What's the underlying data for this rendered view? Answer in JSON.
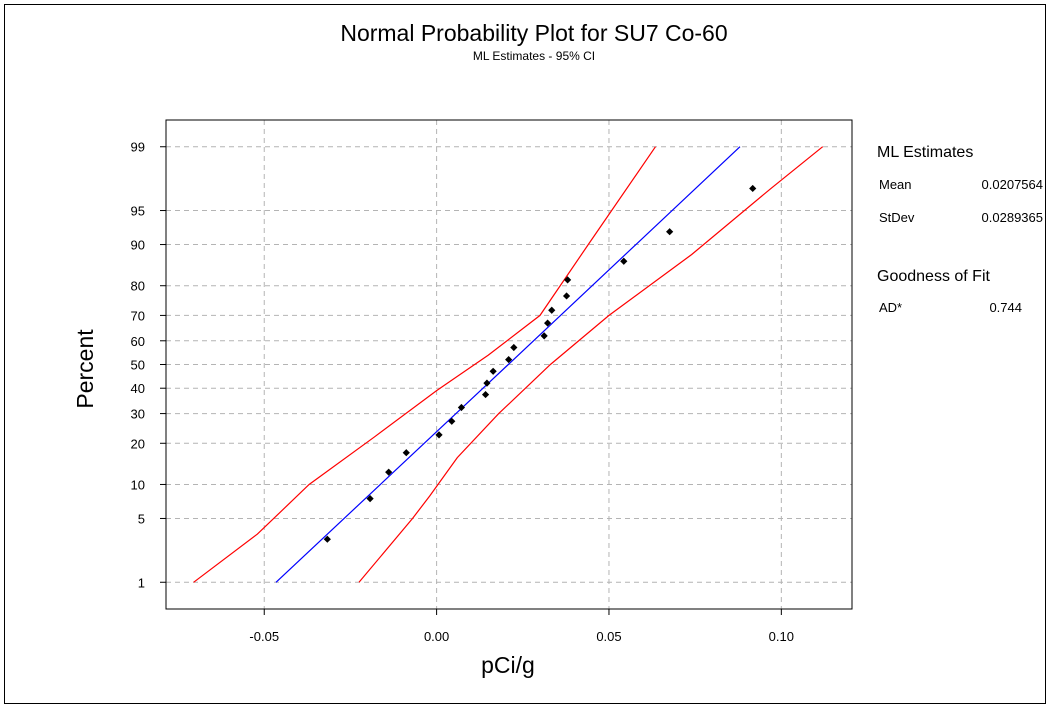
{
  "chart_data": {
    "type": "scatter",
    "title": "Normal Probability Plot for SU7 Co-60",
    "subtitle": "ML Estimates - 95% CI",
    "xlabel": "pCi/g",
    "ylabel": "Percent",
    "xlim": [
      -0.0785,
      0.1205
    ],
    "x_ticks": [
      -0.05,
      0.0,
      0.05,
      0.1
    ],
    "x_tick_labels": [
      "-0.05",
      "0.00",
      "0.05",
      "0.10"
    ],
    "y_scale": "normal-probability",
    "ylim": [
      0.45,
      99.55
    ],
    "y_ticks": [
      1,
      5,
      10,
      20,
      30,
      40,
      50,
      60,
      70,
      80,
      90,
      95,
      99
    ],
    "y_tick_labels": [
      "1",
      "5",
      "10",
      "20",
      "30",
      "40",
      "50",
      "60",
      "70",
      "80",
      "90",
      "95",
      "99"
    ],
    "grid": true,
    "grid_style": "dashed",
    "series": [
      {
        "kind": "points",
        "color": "#000000",
        "marker": "diamond",
        "points": [
          {
            "x": -0.0317,
            "y": 3.1
          },
          {
            "x": -0.0193,
            "y": 7.6
          },
          {
            "x": -0.0139,
            "y": 12.5
          },
          {
            "x": -0.0088,
            "y": 17.3
          },
          {
            "x": 0.0007,
            "y": 22.6
          },
          {
            "x": 0.0044,
            "y": 27.2
          },
          {
            "x": 0.0072,
            "y": 32.3
          },
          {
            "x": 0.0142,
            "y": 37.4
          },
          {
            "x": 0.0146,
            "y": 42.1
          },
          {
            "x": 0.0164,
            "y": 47.1
          },
          {
            "x": 0.0209,
            "y": 52.1
          },
          {
            "x": 0.0224,
            "y": 57.2
          },
          {
            "x": 0.0312,
            "y": 62.0
          },
          {
            "x": 0.0322,
            "y": 67.1
          },
          {
            "x": 0.0334,
            "y": 71.9
          },
          {
            "x": 0.0377,
            "y": 76.8
          },
          {
            "x": 0.038,
            "y": 81.7
          },
          {
            "x": 0.0543,
            "y": 86.5
          },
          {
            "x": 0.0676,
            "y": 92.2
          },
          {
            "x": 0.0917,
            "y": 97.0
          }
        ]
      },
      {
        "kind": "line",
        "color": "#0000ff",
        "points": [
          {
            "x": -0.0466,
            "y": 1
          },
          {
            "x": 0.0208,
            "y": 50
          },
          {
            "x": 0.088,
            "y": 99
          }
        ]
      },
      {
        "kind": "line",
        "color": "#ff0000",
        "points": [
          {
            "x": -0.0705,
            "y": 1
          },
          {
            "x": -0.052,
            "y": 3.5
          },
          {
            "x": -0.037,
            "y": 10
          },
          {
            "x": -0.018,
            "y": 22
          },
          {
            "x": 0.0,
            "y": 39
          },
          {
            "x": 0.015,
            "y": 54
          },
          {
            "x": 0.03,
            "y": 70
          },
          {
            "x": 0.044,
            "y": 90
          },
          {
            "x": 0.0635,
            "y": 99
          }
        ]
      },
      {
        "kind": "line",
        "color": "#ff0000",
        "points": [
          {
            "x": -0.0225,
            "y": 1
          },
          {
            "x": -0.007,
            "y": 5
          },
          {
            "x": -0.002,
            "y": 8
          },
          {
            "x": 0.006,
            "y": 16
          },
          {
            "x": 0.018,
            "y": 30
          },
          {
            "x": 0.033,
            "y": 50
          },
          {
            "x": 0.05,
            "y": 70
          },
          {
            "x": 0.074,
            "y": 88
          },
          {
            "x": 0.097,
            "y": 97
          },
          {
            "x": 0.112,
            "y": 99
          }
        ]
      }
    ]
  },
  "legend": {
    "estimates_title": "ML Estimates",
    "mean_label": "Mean",
    "mean_value": "0.0207564",
    "stdev_label": "StDev",
    "stdev_value": "0.0289365",
    "gof_title": "Goodness of Fit",
    "ad_label": "AD*",
    "ad_value": "0.744"
  }
}
